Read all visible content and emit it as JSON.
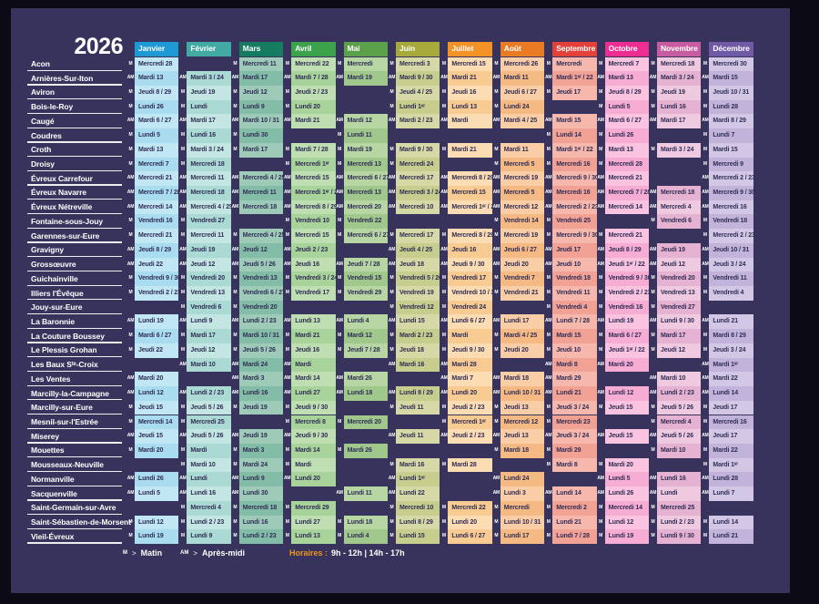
{
  "title": "2026",
  "colors": {
    "outer": "#0b0a15",
    "panel": "#37335c",
    "cell_text": "#312e56",
    "label_text": "#ffffff",
    "hours_accent": "#f0941f"
  },
  "legend": {
    "m_symbol": "M",
    "m_arrow": ">",
    "m_label": "Matin",
    "am_symbol": "AM",
    "am_arrow": ">",
    "am_label": "Après-midi",
    "hours_label": "Horaires :",
    "hours_value": "9h - 12h | 14h - 17h"
  },
  "months": [
    {
      "label": "Janvier",
      "header": "#1d9ad3",
      "light": "#c1e7f5",
      "dark": "#a9dcee"
    },
    {
      "label": "Février",
      "header": "#43a9a3",
      "light": "#c4e6e2",
      "dark": "#abdad4"
    },
    {
      "label": "Mars",
      "header": "#167c60",
      "light": "#9dcbb8",
      "dark": "#84bda7"
    },
    {
      "label": "Avril",
      "header": "#3ca24b",
      "light": "#bfdfb2",
      "dark": "#a8d49c"
    },
    {
      "label": "Mai",
      "header": "#5ba04a",
      "light": "#b7d6a3",
      "dark": "#a0c88c"
    },
    {
      "label": "Juin",
      "header": "#a8a93b",
      "light": "#d6d9a5",
      "dark": "#c7cd8d"
    },
    {
      "label": "Juillet",
      "header": "#f39325",
      "light": "#fbdcb3",
      "dark": "#f8cb92"
    },
    {
      "label": "Août",
      "header": "#e97b25",
      "light": "#f9cda6",
      "dark": "#f5ba84"
    },
    {
      "label": "Septembre",
      "header": "#e34039",
      "light": "#f6b8ad",
      "dark": "#f2a195"
    },
    {
      "label": "Octobre",
      "header": "#ee2d92",
      "light": "#fac4e0",
      "dark": "#f7add3"
    },
    {
      "label": "Novembre",
      "header": "#c75da0",
      "light": "#eec9e0",
      "dark": "#e6b2d2"
    },
    {
      "label": "Décembre",
      "header": "#715aa5",
      "light": "#d2c8e5",
      "dark": "#c1b3da"
    }
  ],
  "rows": [
    {
      "name": "Acon",
      "marker": "M",
      "cells": [
        "Mercredi 28",
        "",
        "Mercredi 11",
        "Mercredi 22",
        "Mercredi",
        "Mercredi 3",
        "Mercredi 15",
        "Mercredi 26",
        "Mercredi",
        "Mercredi 7",
        "Mercredi 18",
        "Mercredi 30"
      ]
    },
    {
      "name": "Arnières-Sur-Iton",
      "marker": "AM",
      "cells": [
        "Mardi 13",
        "Mardi 3 / 24",
        "Mardi 17",
        "Mardi 7 / 28",
        "Mardi 19",
        "Mardi 9 / 30",
        "Mardi 21",
        "Mardi 11",
        "Mardi 1ᵉʳ / 22",
        "Mardi 13",
        "Mardi 3 / 24",
        "Mardi 15"
      ]
    },
    {
      "name": "Aviron",
      "marker": "M",
      "cells": [
        "Jeudi 8 / 29",
        "Jeudi 19",
        "Jeudi 12",
        "Jeudi 2 / 23",
        "",
        "Jeudi 4 / 25",
        "Jeudi 16",
        "Jeudi 6 / 27",
        "Jeudi 17",
        "Jeudi 8 / 29",
        "Jeudi 19",
        "Jeudi 10 / 31"
      ]
    },
    {
      "name": "Bois-le-Roy",
      "marker": "M",
      "cells": [
        "Lundi 26",
        "Lundi",
        "Lundi 9",
        "Lundi 20",
        "",
        "Lundi 1ᵉʳ",
        "Lundi 13",
        "Lundi 24",
        "",
        "Lundi 5",
        "Lundi 16",
        "Lundi 28"
      ]
    },
    {
      "name": "Caugé",
      "marker": "AM",
      "cells": [
        "Mardi 6 / 27",
        "Mardi 17",
        "Mardi 10 / 31",
        "Mardi 21",
        "Mardi 12",
        "Mardi 2 / 23",
        "Mardi",
        "Mardi 4 / 25",
        "Mardi 15",
        "Mardi 6 / 27",
        "Mardi 17",
        "Mardi 8 / 29"
      ]
    },
    {
      "name": "Coudres",
      "marker": "M",
      "cells": [
        "Lundi 5",
        "Lundi 16",
        "Lundi 30",
        "",
        "Lundi 11",
        "",
        "",
        "",
        "Lundi 14",
        "Lundi 26",
        "",
        "Lundi 7"
      ]
    },
    {
      "name": "Croth",
      "marker": "M",
      "cells": [
        "Mardi 13",
        "Mardi 3 / 24",
        "Mardi 17",
        "Mardi 7 / 28",
        "Mardi 19",
        "Mardi 9 / 30",
        "Mardi 21",
        "Mardi 11",
        "Mardi 1ᵉʳ / 22",
        "Mardi 13",
        "Mardi 3 / 24",
        "Mardi 15"
      ]
    },
    {
      "name": "Droisy",
      "marker": "M",
      "cells": [
        "Mercredi 7",
        "Mercredi 18",
        "",
        "Mercredi 1ᵉʳ",
        "Mercredi 13",
        "Mercredi 24",
        "",
        "Mercredi 5",
        "Mercredi 16",
        "Mercredi 28",
        "",
        "Mercredi 9"
      ]
    },
    {
      "name": "Évreux Carrefour",
      "marker": "AM",
      "cells": [
        "Mercredi 21",
        "Mercredi 11",
        "Mercredi 4 / 25",
        "Mercredi 15",
        "Mercredi 6 / 27",
        "Mercredi 17",
        "Mercredi 8 / 29",
        "Mercredi 19",
        "Mercredi 9 / 30",
        "Mercredi 21",
        "",
        "Mercredi 2 / 23"
      ]
    },
    {
      "name": "Évreux Navarre",
      "marker": "AM",
      "cells": [
        "Mercredi 7 / 28",
        "Mercredi 18",
        "Mercredi 11",
        "Mercredi 1ᵉʳ / 22",
        "Mercredi 13",
        "Mercredi 3 / 24",
        "Mercredi 15",
        "Mercredi 5",
        "Mercredi 16",
        "Mercredi 7 / 28",
        "Mercredi 18",
        "Mercredi 9 / 30"
      ]
    },
    {
      "name": "Évreux Nétreville",
      "marker": "AM",
      "cells": [
        "Mercredi 14",
        "Mercredi 4 / 25",
        "Mercredi 18",
        "Mercredi 8 / 29",
        "Mercredi 20",
        "Mercredi 10",
        "Mercredi 1ᵉʳ / 22",
        "Mercredi 12",
        "Mercredi 2 / 23",
        "Mercredi 14",
        "Mercredi 4",
        "Mercredi 16"
      ]
    },
    {
      "name": "Fontaine-sous-Jouy",
      "marker": "M",
      "cells": [
        "Vendredi 16",
        "Vendredi 27",
        "",
        "Vendredi 10",
        "Vendredi 22",
        "",
        "",
        "Vendredi 14",
        "Vendredi 25",
        "",
        "Vendredi 6",
        "Vendredi 18"
      ]
    },
    {
      "name": "Garennes-sur-Eure",
      "marker": "M",
      "cells": [
        "Mercredi 21",
        "Mercredi 11",
        "Mercredi 4 / 25",
        "Mercredi 15",
        "Mercredi 6 / 27",
        "Mercredi 17",
        "Mercredi 8 / 29",
        "Mercredi 19",
        "Mercredi 9 / 30",
        "Mercredi 21",
        "",
        "Mercredi 2 / 23"
      ]
    },
    {
      "name": "Gravigny",
      "marker": "AM",
      "cells": [
        "Jeudi 8 / 29",
        "Jeudi 19",
        "Jeudi 12",
        "Jeudi 2 / 23",
        "",
        "Jeudi 4 / 25",
        "Jeudi 16",
        "Jeudi 6 / 27",
        "Jeudi 17",
        "Jeudi 8 / 29",
        "Jeudi 19",
        "Jeudi 10 / 31"
      ]
    },
    {
      "name": "Grossœuvre",
      "marker": "AM",
      "cells": [
        "Jeudi 22",
        "Jeudi 12",
        "Jeudi 5 / 26",
        "Jeudi 16",
        "Jeudi 7 / 28",
        "Jeudi 18",
        "Jeudi 9 / 30",
        "Jeudi 20",
        "Jeudi 10",
        "Jeudi 1ᵉʳ / 22",
        "Jeudi 12",
        "Jeudi 3 / 24"
      ]
    },
    {
      "name": "Guichainville",
      "marker": "M",
      "cells": [
        "Vendredi 9 / 30",
        "Vendredi 20",
        "Vendredi 13",
        "Vendredi 3 / 24",
        "Vendredi 15",
        "Vendredi 5 / 26",
        "Vendredi 17",
        "Vendredi 7",
        "Vendredi 18",
        "Vendredi 9 / 30",
        "Vendredi 20",
        "Vendredi 11"
      ]
    },
    {
      "name": "Illiers l'Évêque",
      "marker": "M",
      "cells": [
        "Vendredi 2 / 23",
        "Vendredi 13",
        "Vendredi 6 / 27",
        "Vendredi 17",
        "Vendredi 29",
        "Vendredi 19",
        "Vendredi 10 / 31",
        "Vendredi 21",
        "Vendredi 11",
        "Vendredi 2 / 23",
        "Vendredi 13",
        "Vendredi 4"
      ]
    },
    {
      "name": "Jouy-sur-Eure",
      "marker": "M",
      "cells": [
        "",
        "Vendredi 6",
        "Vendredi 20",
        "",
        "",
        "Vendredi 12",
        "Vendredi 24",
        "",
        "Vendredi 4",
        "Vendredi 16",
        "Vendredi 27",
        ""
      ]
    },
    {
      "name": "La Baronnie",
      "marker": "AM",
      "cells": [
        "Lundi 19",
        "Lundi 9",
        "Lundi 2 / 23",
        "Lundi 13",
        "Lundi 4",
        "Lundi 15",
        "Lundi 6 / 27",
        "Lundi 17",
        "Lundi 7 / 28",
        "Lundi 19",
        "Lundi 9 / 30",
        "Lundi 21"
      ]
    },
    {
      "name": "La Couture Boussey",
      "marker": "M",
      "cells": [
        "Mardi 6 / 27",
        "Mardi 17",
        "Mardi 10 / 31",
        "Mardi 21",
        "Mardi 12",
        "Mardi 2 / 23",
        "Mardi",
        "Mardi 4 / 25",
        "Mardi 15",
        "Mardi 6 / 27",
        "Mardi 17",
        "Mardi 8 / 29"
      ]
    },
    {
      "name": "Le Plessis Grohan",
      "marker": "M",
      "cells": [
        "Jeudi 22",
        "Jeudi 12",
        "Jeudi 5 / 26",
        "Jeudi 16",
        "Jeudi 7 / 28",
        "Jeudi 18",
        "Jeudi 9 / 30",
        "Jeudi 20",
        "Jeudi 10",
        "Jeudi 1ᵉʳ / 22",
        "Jeudi 12",
        "Jeudi 3 / 24"
      ]
    },
    {
      "name": "Les Baux Sᵗᵉ-Croix",
      "marker": "AM",
      "cells": [
        "",
        "Mardi 10",
        "Mardi 24",
        "Mardi",
        "",
        "Mardi 16",
        "Mardi 28",
        "",
        "Mardi 8",
        "Mardi 20",
        "",
        "Mardi 1ᵉʳ"
      ]
    },
    {
      "name": "Les Ventes",
      "marker": "AM",
      "cells": [
        "Mardi 20",
        "",
        "Mardi 3",
        "Mardi 14",
        "Mardi 26",
        "",
        "Mardi 7",
        "Mardi 18",
        "Mardi 29",
        "",
        "Mardi 10",
        "Mardi 22"
      ]
    },
    {
      "name": "Marcilly-la-Campagne",
      "marker": "AM",
      "cells": [
        "Lundi 12",
        "Lundi 2 / 23",
        "Lundi 16",
        "Lundi 27",
        "Lundi 18",
        "Lundi 8 / 29",
        "Lundi 20",
        "Lundi 10 / 31",
        "Lundi 21",
        "Lundi 12",
        "Lundi 2 / 23",
        "Lundi 14"
      ]
    },
    {
      "name": "Marcilly-sur-Eure",
      "marker": "M",
      "cells": [
        "Jeudi 15",
        "Jeudi 5 / 26",
        "Jeudi 19",
        "Jeudi 9 / 30",
        "",
        "Jeudi 11",
        "Jeudi 2 / 23",
        "Jeudi 13",
        "Jeudi 3 / 24",
        "Jeudi 15",
        "Jeudi 5 / 26",
        "Jeudi 17"
      ]
    },
    {
      "name": "Mesnil-sur-l'Estrée",
      "marker": "M",
      "cells": [
        "Mercredi 14",
        "Mercredi 25",
        "",
        "Mercredi 8",
        "Mercredi 20",
        "",
        "Mercredi 1ᵉʳ",
        "Mercredi 12",
        "Mercredi 23",
        "",
        "Mercredi 4",
        "Mercredi 16"
      ]
    },
    {
      "name": "Miserey",
      "marker": "AM",
      "cells": [
        "Jeudi 15",
        "Jeudi 5 / 26",
        "Jeudi 19",
        "Jeudi 9 / 30",
        "",
        "Jeudi 11",
        "Jeudi 2 / 23",
        "Jeudi 13",
        "Jeudi 3 / 24",
        "Jeudi 15",
        "Jeudi 5 / 26",
        "Jeudi 17"
      ]
    },
    {
      "name": "Mouettes",
      "marker": "M",
      "cells": [
        "Mardi 20",
        "Mardi",
        "Mardi 3",
        "Mardi 14",
        "Mardi 26",
        "",
        "",
        "Mardi 18",
        "Mardi 29",
        "",
        "Mardi 10",
        "Mardi 22"
      ]
    },
    {
      "name": "Mousseaux-Neuville",
      "marker": "M",
      "cells": [
        "",
        "Mardi 10",
        "Mardi 24",
        "Mardi",
        "",
        "Mardi 16",
        "Mardi 28",
        "",
        "Mardi 8",
        "Mardi 20",
        "",
        "Mardi 1ᵉʳ"
      ]
    },
    {
      "name": "Normanville",
      "marker": "AM",
      "cells": [
        "Lundi 26",
        "Lundi",
        "Lundi 9",
        "Lundi 20",
        "",
        "Lundi 1ᵉʳ",
        "",
        "Lundi 24",
        "",
        "Lundi 5",
        "Lundi 16",
        "Lundi 28"
      ]
    },
    {
      "name": "Sacquenville",
      "marker": "AM",
      "cells": [
        "Lundi 5",
        "Lundi 16",
        "Lundi 30",
        "",
        "Lundi 11",
        "Lundi 22",
        "",
        "Lundi 3",
        "Lundi 14",
        "Lundi 26",
        "Lundi",
        "Lundi 7"
      ]
    },
    {
      "name": "Saint-Germain-sur-Avre",
      "marker": "M",
      "cells": [
        "",
        "Mercredi 4",
        "Mercredi 18",
        "Mercredi 29",
        "",
        "Mercredi 10",
        "Mercredi 22",
        "Mercredi",
        "Mercredi 2",
        "Mercredi 14",
        "Mercredi 25",
        ""
      ]
    },
    {
      "name": "Saint-Sébastien-de-Morsent",
      "marker": "M",
      "cells": [
        "Lundi 12",
        "Lundi 2 / 23",
        "Lundi 16",
        "Lundi 27",
        "Lundi 18",
        "Lundi 8 / 29",
        "Lundi 20",
        "Lundi 10 / 31",
        "Lundi 21",
        "Lundi 12",
        "Lundi 2 / 23",
        "Lundi 14"
      ]
    },
    {
      "name": "Vieil-Évreux",
      "marker": "M",
      "cells": [
        "Lundi 19",
        "Lundi 9",
        "Lundi 2 / 23",
        "Lundi 13",
        "Lundi 4",
        "Lundi 15",
        "Lundi 6 / 27",
        "Lundi 17",
        "Lundi 7 / 28",
        "Lundi 19",
        "Lundi 9 / 30",
        "Lundi 21"
      ]
    }
  ]
}
